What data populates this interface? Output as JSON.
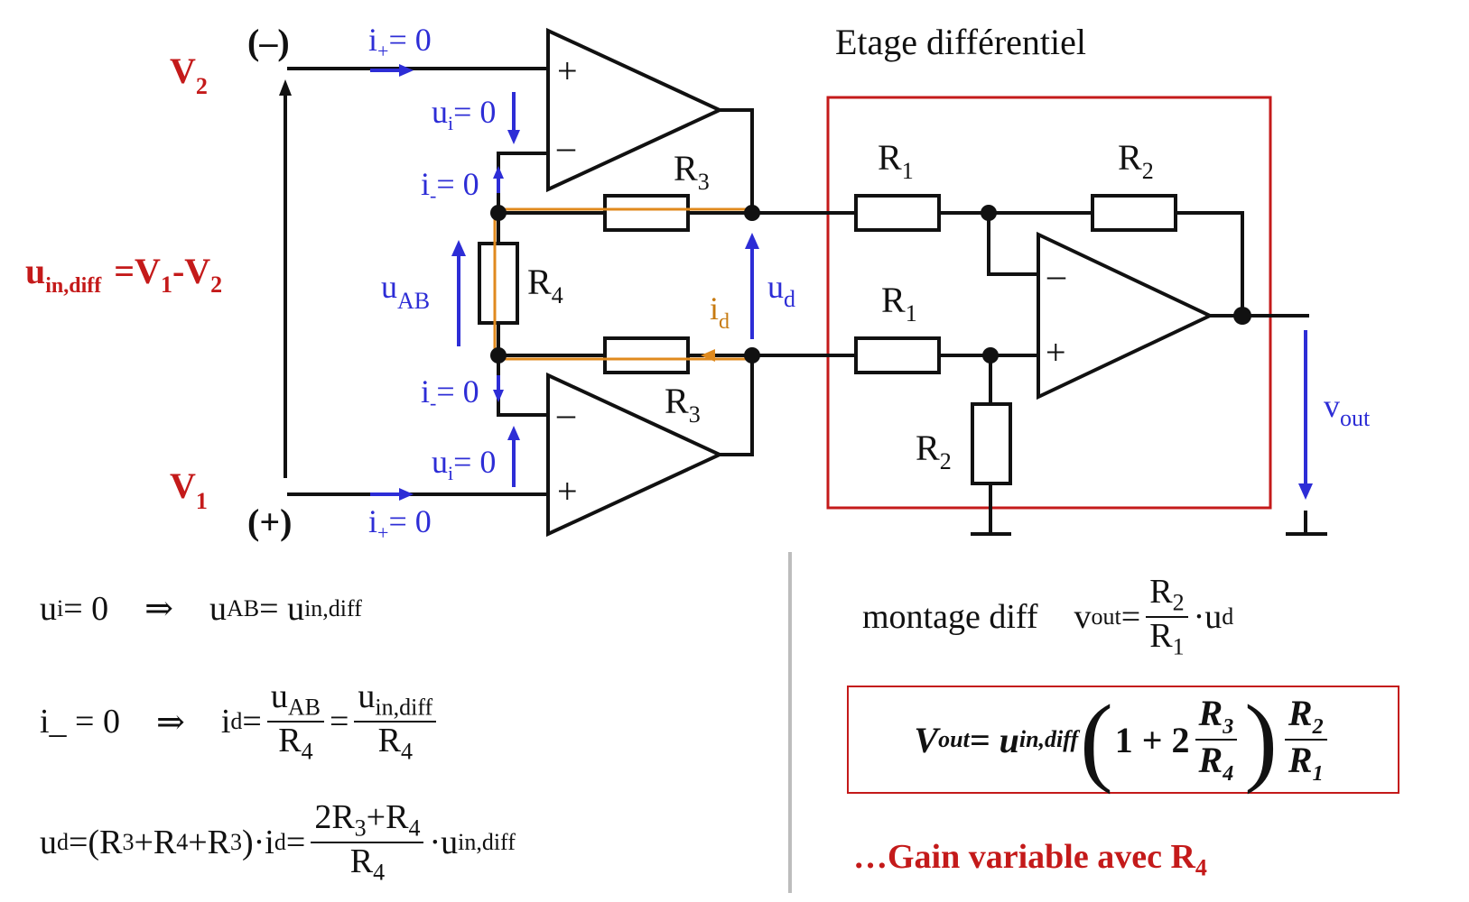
{
  "diagram": {
    "title": "Etage différentiel",
    "inputs": {
      "v2": "V",
      "v2_sub": "2",
      "v1": "V",
      "v1_sub": "1",
      "minus": "(–)",
      "plus": "(+)"
    },
    "input_voltage": {
      "u": "u",
      "sub": "in,diff",
      "eq": "=V",
      "s1": "1",
      "dash": "-V",
      "s2": "2"
    },
    "currents": {
      "ip_top": "i",
      "ip_top_sub": "+",
      "ip_top_eq": "= 0",
      "im_top": "i",
      "im_top_sub": "-",
      "im_top_eq": "= 0",
      "im_bot": "i",
      "im_bot_sub": "-",
      "im_bot_eq": "= 0",
      "ip_bot": "i",
      "ip_bot_sub": "+",
      "ip_bot_eq": "= 0",
      "id": "i",
      "id_sub": "d"
    },
    "voltages": {
      "ui_top": "u",
      "ui_top_sub": "i",
      "ui_top_eq": "= 0",
      "ui_bot": "u",
      "ui_bot_sub": "i",
      "ui_bot_eq": "= 0",
      "uab": "u",
      "uab_sub": "AB",
      "ud": "u",
      "ud_sub": "d",
      "vout": "v",
      "vout_sub": "out"
    },
    "resistors": {
      "r": "R",
      "s1": "1",
      "s2": "2",
      "s3": "3",
      "s4": "4"
    },
    "opamp_signs": {
      "plus": "+",
      "minus": "–"
    },
    "colors": {
      "accent_red": "#c41a1a",
      "accent_blue": "#2d2dd6",
      "accent_orange": "#e08a1e"
    }
  },
  "equations": {
    "eq1": {
      "lhs": "u",
      "lhs_sub": "i",
      "lhs_eq": " = 0",
      "implies": "⇒",
      "rhs": "u",
      "rhs_sub": "AB",
      "rhs_eq": " = u",
      "rhs_sub2": "in,diff"
    },
    "eq2": {
      "lhs": "i_ = 0",
      "implies": "⇒",
      "id": "i",
      "id_sub": "d",
      "eq": " =",
      "n1": "u",
      "n1_sub": "AB",
      "d1": "R",
      "d1_sub": "4",
      "eq2": "=",
      "n2": "u",
      "n2_sub": "in,diff",
      "d2": "R",
      "d2_sub": "4"
    },
    "eq3": {
      "lhs": "u",
      "lhs_sub": "d",
      "mid": "=(R",
      "s3a": "3",
      "p1": "+R",
      "s4": "4",
      "p2": "+R",
      "s3b": "3",
      "close": ")·i",
      "id_sub": "d",
      "eq": " =",
      "num": "2R",
      "num_s3": "3",
      "num_p": "+R",
      "num_s4": "4",
      "den": "R",
      "den_s": "4",
      "tail": "·u",
      "tail_sub": "in,diff"
    },
    "diff": {
      "label": "montage diff",
      "v": "v",
      "v_sub": "out",
      "eq": " =",
      "n": "R",
      "n_s": "2",
      "d": "R",
      "d_s": "1",
      "tail": "·u",
      "tail_sub": "d"
    },
    "result": {
      "lhs": "V",
      "lhs_sub": "out",
      "eq": " = u",
      "eq_sub": "in,diff",
      "one": "1 + 2",
      "n1": "R",
      "n1_s": "3",
      "d1": "R",
      "d1_s": "4",
      "n2": "R",
      "n2_s": "2",
      "d2": "R",
      "d2_s": "1"
    },
    "note": {
      "text": "…Gain variable avec R",
      "sub": "4"
    }
  }
}
